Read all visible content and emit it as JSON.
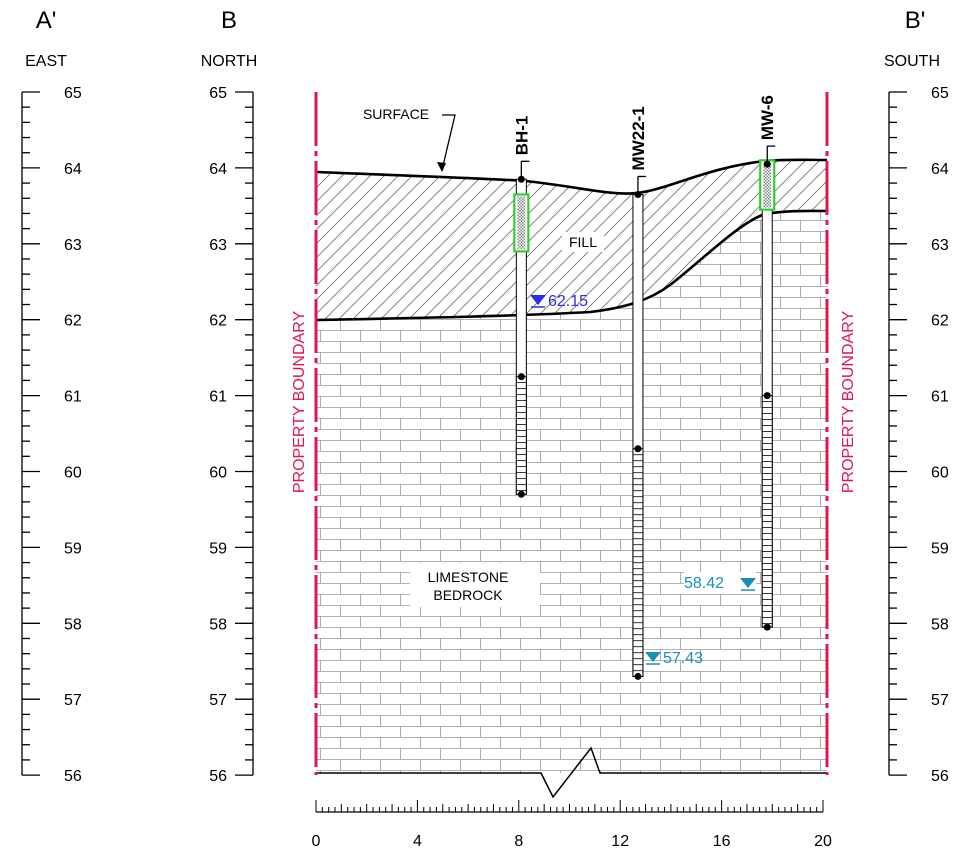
{
  "headings": {
    "left": {
      "letter": "A'",
      "direction": "EAST"
    },
    "middle": {
      "letter": "B",
      "direction": "NORTH"
    },
    "right": {
      "letter": "B'",
      "direction": "SOUTH"
    }
  },
  "elevation_ticks": [
    "65",
    "64",
    "63",
    "62",
    "61",
    "60",
    "59",
    "58",
    "57",
    "56"
  ],
  "distance_ticks": [
    "0",
    "4",
    "8",
    "12",
    "16",
    "20"
  ],
  "labels": {
    "surface": "SURFACE",
    "fill": "FILL",
    "bedrock_line1": "LIMESTONE",
    "bedrock_line2": "BEDROCK",
    "property_boundary": "PROPERTY BOUNDARY"
  },
  "wells": [
    {
      "name": "BH-1",
      "x": 8.1,
      "top": 63.85,
      "screen_top": 63.65,
      "screen_bottom": 62.9,
      "seg_top": 61.25,
      "bottom": 59.7,
      "water_level": "62.15"
    },
    {
      "name": "MW22-1",
      "x": 12.7,
      "top": 63.65,
      "seg_top": 60.3,
      "bottom": 57.3,
      "water_level": "57.43"
    },
    {
      "name": "MW-6",
      "x": 17.8,
      "top": 64.05,
      "screen_top": 64.1,
      "screen_bottom": 63.45,
      "seg_top": 61.0,
      "bottom": 57.95,
      "water_level": "58.42"
    }
  ],
  "colors": {
    "boundary": "#e0174f",
    "water_level_shallow": "#2e2ee6",
    "water_level_deep": "#1a8fb8",
    "screen": "#33cc33",
    "lines": "#000000"
  }
}
